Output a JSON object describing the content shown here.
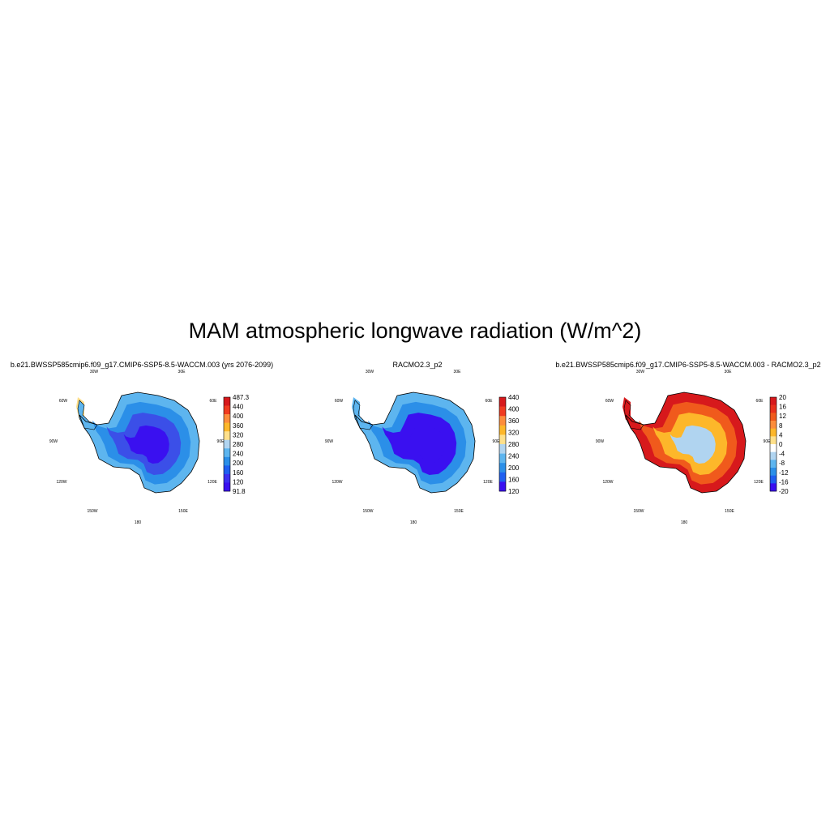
{
  "figure": {
    "title": "MAM atmospheric longwave radiation (W/m^2)"
  },
  "longitude_labels": [
    "30W",
    "30E",
    "60W",
    "60E",
    "90W",
    "90E",
    "120W",
    "120E",
    "150W",
    "150E",
    "180"
  ],
  "panels": [
    {
      "title": "b.e21.BWSSP585cmip6.f09_g17.CMIP6-SSP5-8.5-WACCM.003 (yrs 2076-2099)",
      "colorbar": {
        "labels": [
          "487.3",
          "440",
          "400",
          "360",
          "320",
          "280",
          "240",
          "200",
          "160",
          "120",
          "91.8"
        ],
        "colors": [
          "#d7191c",
          "#f03b20",
          "#fd8d3c",
          "#fdb72a",
          "#fee08b",
          "#b0d4f0",
          "#5db5ef",
          "#2b8fe8",
          "#1f5ff0",
          "#3b2ff0",
          "#3a10f0"
        ]
      },
      "fields": {
        "ocean_strip": "#fee08b",
        "coast": "#5db5ef",
        "mid": "#2b8fe8",
        "inner": "#3b4fe8",
        "core": "#3a10f0"
      }
    },
    {
      "title": "RACMO2.3_p2",
      "colorbar": {
        "labels": [
          "440",
          "400",
          "360",
          "320",
          "280",
          "240",
          "200",
          "160",
          "120"
        ],
        "colors": [
          "#d7191c",
          "#f03b20",
          "#fd8d3c",
          "#fdb72a",
          "#fee08b",
          "#b0d4f0",
          "#5db5ef",
          "#2b8fe8",
          "#1f5ff0",
          "#3a10f0"
        ]
      },
      "fields": {
        "ocean_strip": "#5db5ef",
        "coast": "#5db5ef",
        "mid": "#2b8fe8",
        "inner": "#3a10f0",
        "core": "#3a10f0"
      }
    },
    {
      "title": "b.e21.BWSSP585cmip6.f09_g17.CMIP6-SSP5-8.5-WACCM.003 - RACMO2.3_p2",
      "colorbar": {
        "labels": [
          "20",
          "16",
          "12",
          "8",
          "4",
          "0",
          "-4",
          "-8",
          "-12",
          "-16",
          "-20"
        ],
        "colors": [
          "#d7191c",
          "#e8311c",
          "#f05a1c",
          "#fd8d3c",
          "#fdb72a",
          "#fee08b",
          "#ffffff",
          "#b0d4f0",
          "#5db5ef",
          "#2b8fe8",
          "#1f5ff0",
          "#3a10f0"
        ]
      },
      "fields": {
        "ocean_strip": "#d7191c",
        "coast": "#d7191c",
        "mid": "#f05a1c",
        "inner": "#fdb72a",
        "core": "#b0d4f0"
      }
    }
  ]
}
